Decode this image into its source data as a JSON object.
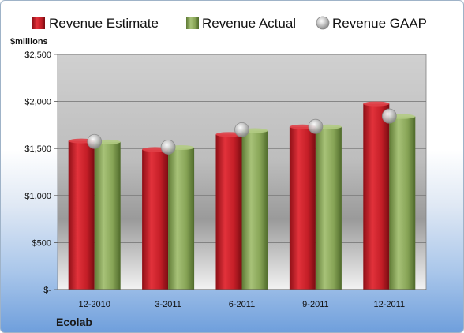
{
  "chart_data": {
    "type": "bar",
    "unit_label": "$millions",
    "company": "Ecolab",
    "categories": [
      "12-2010",
      "3-2011",
      "6-2011",
      "9-2011",
      "12-2011"
    ],
    "series": [
      {
        "name": "Revenue Estimate",
        "kind": "bar",
        "values": [
          1580,
          1490,
          1650,
          1730,
          1975
        ]
      },
      {
        "name": "Revenue Actual",
        "kind": "bar",
        "values": [
          1570,
          1510,
          1690,
          1730,
          1840
        ]
      },
      {
        "name": "Revenue GAAP",
        "kind": "marker",
        "values": [
          1575,
          1515,
          1700,
          1735,
          1845
        ]
      }
    ],
    "ylim": [
      0,
      2500
    ],
    "yticks": [
      0,
      500,
      1000,
      1500,
      2000,
      2500
    ],
    "ytick_labels": [
      "$-",
      "$500",
      "$1,000",
      "$1,500",
      "$2,000",
      "$2,500"
    ],
    "grid": true,
    "legend_position": "top",
    "colors": {
      "estimate": "#c8202a",
      "actual": "#8aa858",
      "gaap": "#b4b4b4"
    }
  }
}
